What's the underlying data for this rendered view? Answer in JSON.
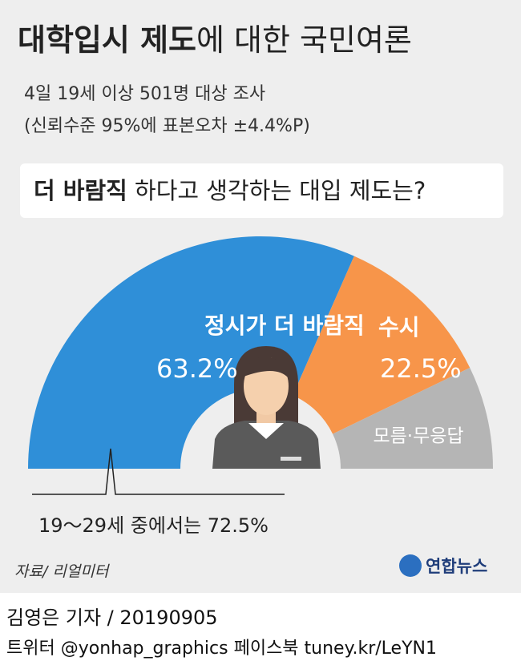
{
  "chart_data": {
    "type": "pie",
    "title": [
      "대학입시 제도",
      "에 대한 국민여론"
    ],
    "subtitle": [
      "4일 19세 이상 501명 대상 조사",
      "(신뢰수준 95%에 표본오차 ±4.4%P)"
    ],
    "question": [
      "더 바람직",
      " 하다고 생각하는 대입 제도는?"
    ],
    "categories": [
      "정시가 더 바람직",
      "수시",
      "모름·무응답"
    ],
    "values": [
      63.2,
      22.5,
      14.3
    ],
    "value_labels": [
      "63.2%",
      "22.5%",
      null
    ],
    "colors": [
      "#2f8fd8",
      "#f7954a",
      "#b5b5b5"
    ],
    "annotation": "19～29세 중에서는 72.5%",
    "source": "자료/ 리얼미터",
    "logo": "연합뉴스",
    "byline": "김영은 기자 / 20190905",
    "footer": "트위터 @yonhap_graphics  페이스북 tuney.kr/LeYN1"
  }
}
